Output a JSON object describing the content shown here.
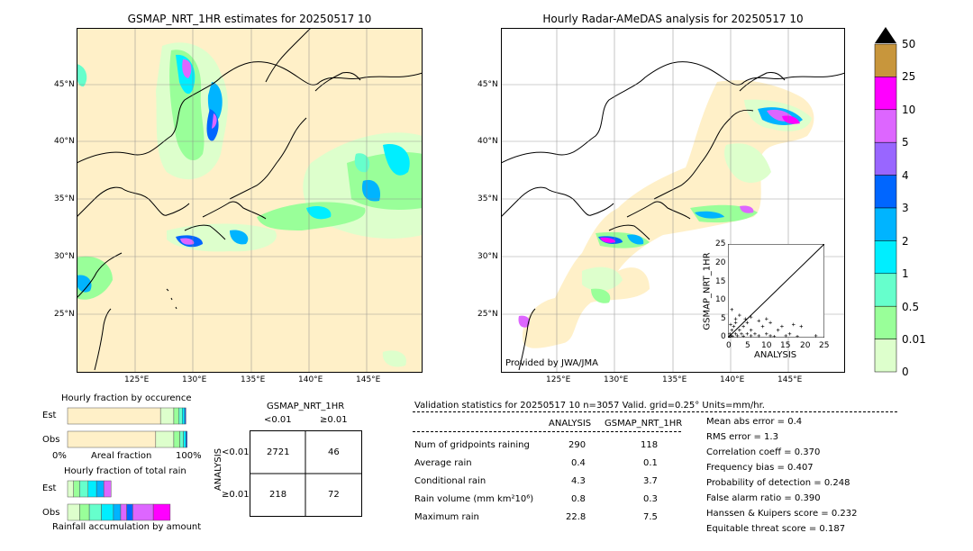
{
  "left_map": {
    "title": "GSMAP_NRT_1HR estimates for 20250517 10",
    "lat_labels": [
      "45°N",
      "40°N",
      "35°N",
      "30°N",
      "25°N"
    ],
    "lon_labels": [
      "125°E",
      "130°E",
      "135°E",
      "140°E",
      "145°E"
    ]
  },
  "right_map": {
    "title": "Hourly Radar-AMeDAS analysis for 20250517 10",
    "lat_labels": [
      "45°N",
      "40°N",
      "35°N",
      "30°N",
      "25°N"
    ],
    "lon_labels": [
      "125°E",
      "130°E",
      "135°E",
      "140°E",
      "145°E"
    ],
    "credit": "Provided by JWA/JMA"
  },
  "colorbar": {
    "labels": [
      "50",
      "25",
      "10",
      "5",
      "4",
      "3",
      "2",
      "1",
      "0.5",
      "0.01",
      "0"
    ],
    "colors": [
      "#c8963c",
      "#ff00ff",
      "#dd66ff",
      "#9966ff",
      "#0066ff",
      "#00b4ff",
      "#00eeff",
      "#66ffcc",
      "#99ff99",
      "#ddffcc",
      "#fff0c8"
    ]
  },
  "inset_scatter": {
    "ylabel": "GSMAP_NRT_1HR",
    "xlabel": "ANALYSIS",
    "ticks": [
      "0",
      "5",
      "10",
      "15",
      "20",
      "25"
    ]
  },
  "fraction_occurrence": {
    "title": "Hourly fraction by occurence",
    "rows": [
      "Est",
      "Obs"
    ],
    "axis_left": "0%",
    "axis_mid": "Areal fraction",
    "axis_right": "100%"
  },
  "fraction_total": {
    "title": "Hourly fraction of total rain",
    "rows": [
      "Est",
      "Obs"
    ],
    "axis_label": "Rainfall accumulation by amount"
  },
  "contingency": {
    "title": "GSMAP_NRT_1HR",
    "col_headers": [
      "<0.01",
      "≥0.01"
    ],
    "row_axis": "ANALYSIS",
    "row_headers": [
      "<0.01",
      "≥0.01"
    ],
    "cells": [
      [
        "2721",
        "46"
      ],
      [
        "218",
        "72"
      ]
    ]
  },
  "validation": {
    "header": "Validation statistics for 20250517 10  n=3057 Valid. grid=0.25° Units=mm/hr.",
    "col_analysis": "ANALYSIS",
    "col_gsmap": "GSMAP_NRT_1HR",
    "rows": [
      {
        "label": "Num of gridpoints raining",
        "a": "290",
        "g": "118"
      },
      {
        "label": "Average rain",
        "a": "0.4",
        "g": "0.1"
      },
      {
        "label": "Conditional rain",
        "a": "4.3",
        "g": "3.7"
      },
      {
        "label": "Rain volume (mm km²10⁶)",
        "a": "0.8",
        "g": "0.3"
      },
      {
        "label": "Maximum rain",
        "a": "22.8",
        "g": "7.5"
      }
    ],
    "scores": [
      "Mean abs error =    0.4",
      "RMS error =    1.3",
      "Correlation coeff =  0.370",
      "Frequency bias =  0.407",
      "Probability of detection =  0.248",
      "False alarm ratio =  0.390",
      "Hanssen & Kuipers score =  0.232",
      "Equitable threat score =  0.187"
    ]
  },
  "chart_data": [
    {
      "type": "heatmap",
      "title": "GSMAP_NRT_1HR estimates for 20250517 10",
      "xlabel": "",
      "ylabel": "",
      "x_ticks": [
        "125°E",
        "130°E",
        "135°E",
        "140°E",
        "145°E"
      ],
      "y_ticks": [
        "45°N",
        "40°N",
        "35°N",
        "30°N",
        "25°N"
      ],
      "color_levels": [
        0,
        0.01,
        0.5,
        1,
        2,
        3,
        4,
        5,
        10,
        25,
        50
      ]
    },
    {
      "type": "heatmap",
      "title": "Hourly Radar-AMeDAS analysis for 20250517 10",
      "xlabel": "",
      "ylabel": "",
      "x_ticks": [
        "125°E",
        "130°E",
        "135°E",
        "140°E",
        "145°E"
      ],
      "y_ticks": [
        "45°N",
        "40°N",
        "35°N",
        "30°N",
        "25°N"
      ],
      "color_levels": [
        0,
        0.01,
        0.5,
        1,
        2,
        3,
        4,
        5,
        10,
        25,
        50
      ]
    },
    {
      "type": "scatter",
      "xlabel": "ANALYSIS",
      "ylabel": "GSMAP_NRT_1HR",
      "xlim": [
        0,
        25
      ],
      "ylim": [
        0,
        25
      ],
      "points": [
        [
          0.3,
          0.2
        ],
        [
          0.5,
          1
        ],
        [
          0.8,
          0.5
        ],
        [
          1,
          2
        ],
        [
          1.2,
          0.3
        ],
        [
          1.5,
          3
        ],
        [
          2,
          1
        ],
        [
          2,
          5
        ],
        [
          2.5,
          0.5
        ],
        [
          3,
          2
        ],
        [
          3,
          6
        ],
        [
          3.5,
          1
        ],
        [
          4,
          0.4
        ],
        [
          4,
          3
        ],
        [
          5,
          1
        ],
        [
          5,
          4
        ],
        [
          6,
          0.5
        ],
        [
          6,
          2
        ],
        [
          7,
          1
        ],
        [
          8,
          0.5
        ],
        [
          9,
          3
        ],
        [
          10,
          1
        ],
        [
          11,
          0.5
        ],
        [
          12,
          0.3
        ],
        [
          13,
          2
        ],
        [
          15,
          0.5
        ],
        [
          16,
          1
        ],
        [
          18,
          0.3
        ],
        [
          22.8,
          0.5
        ],
        [
          1,
          7.5
        ],
        [
          2,
          4
        ],
        [
          0.7,
          3.5
        ],
        [
          4.5,
          5
        ],
        [
          6,
          5.5
        ],
        [
          8,
          4.5
        ],
        [
          10,
          5
        ],
        [
          11,
          4
        ],
        [
          14,
          3
        ],
        [
          17,
          3.5
        ],
        [
          19,
          3
        ]
      ]
    },
    {
      "type": "bar",
      "title": "Hourly fraction by occurence",
      "categories": [
        "Est",
        "Obs"
      ],
      "series": [
        {
          "values": [
            0.77,
            0.73
          ]
        },
        {
          "values": [
            0.11,
            0.15
          ]
        },
        {
          "values": [
            0.04,
            0.05
          ]
        },
        {
          "values": [
            0.03,
            0.03
          ]
        },
        {
          "values": [
            0.02,
            0.02
          ]
        },
        {
          "values": [
            0.01,
            0.01
          ]
        }
      ]
    },
    {
      "type": "bar",
      "title": "Hourly fraction of total rain",
      "xlabel": "Rainfall accumulation by amount",
      "categories": [
        "Est",
        "Obs"
      ],
      "series": [
        {
          "values": [
            0.05,
            0.1
          ]
        },
        {
          "values": [
            0.05,
            0.08
          ]
        },
        {
          "values": [
            0.07,
            0.1
          ]
        },
        {
          "values": [
            0.07,
            0.1
          ]
        },
        {
          "values": [
            0.06,
            0.06
          ]
        },
        {
          "values": [
            0.06,
            0.05
          ]
        },
        {
          "values": [
            0.0,
            0.05
          ]
        },
        {
          "values": [
            0.0,
            0.17
          ]
        },
        {
          "values": [
            0.0,
            0.14
          ]
        }
      ]
    }
  ]
}
